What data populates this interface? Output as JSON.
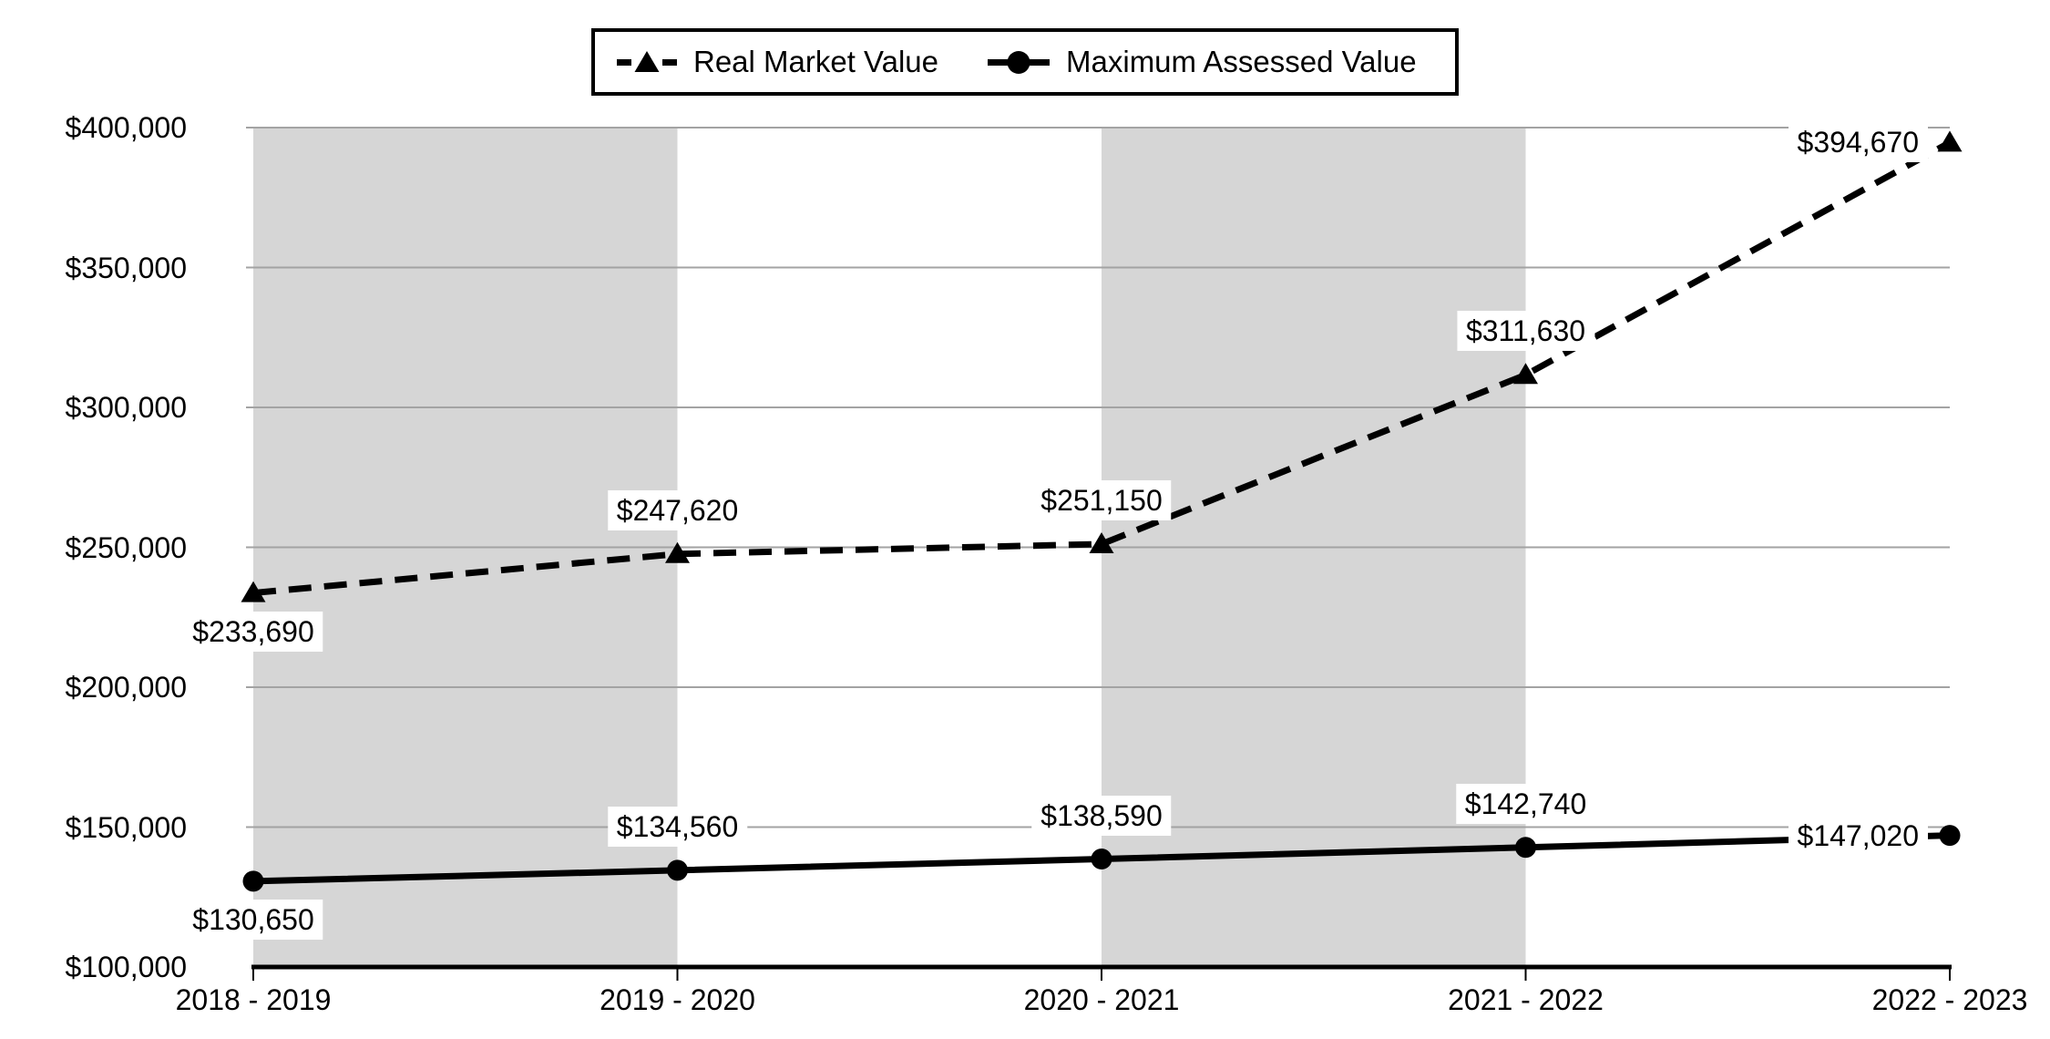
{
  "colors": {
    "background": "#ffffff",
    "band": "#d6d6d6",
    "gridline": "#a3a3a3",
    "axis": "#000000",
    "series": "#000000",
    "label_background": "#ffffff"
  },
  "chart_data": {
    "type": "line",
    "title": "",
    "xlabel": "",
    "ylabel": "",
    "categories": [
      "2018 - 2019",
      "2019 - 2020",
      "2020 - 2021",
      "2021 - 2022",
      "2022 - 2023"
    ],
    "series": [
      {
        "name": "Real Market Value",
        "values": [
          233690,
          247620,
          251150,
          311630,
          394670
        ],
        "data_labels": [
          "$233,690",
          "$247,620",
          "$251,150",
          "$311,630",
          "$394,670"
        ],
        "label_placement": [
          "below",
          "above",
          "above",
          "above",
          "left"
        ],
        "line_style": "dashed",
        "marker": "triangle",
        "color": "#000000"
      },
      {
        "name": "Maximum Assessed Value",
        "values": [
          130650,
          134560,
          138590,
          142740,
          147020
        ],
        "data_labels": [
          "$130,650",
          "$134,560",
          "$138,590",
          "$142,740",
          "$147,020"
        ],
        "label_placement": [
          "below",
          "above",
          "above",
          "above",
          "left"
        ],
        "line_style": "solid",
        "marker": "circle",
        "color": "#000000"
      }
    ],
    "ylim": [
      100000,
      400000
    ],
    "y_step": 50000,
    "y_tick_labels": [
      "$100,000",
      "$150,000",
      "$200,000",
      "$250,000",
      "$300,000",
      "$350,000",
      "$400,000"
    ],
    "grid": true,
    "legend_position": "top",
    "shaded_bands": {
      "color": "#d6d6d6",
      "category_intervals": [
        [
          0,
          1
        ],
        [
          2,
          3
        ]
      ]
    }
  }
}
